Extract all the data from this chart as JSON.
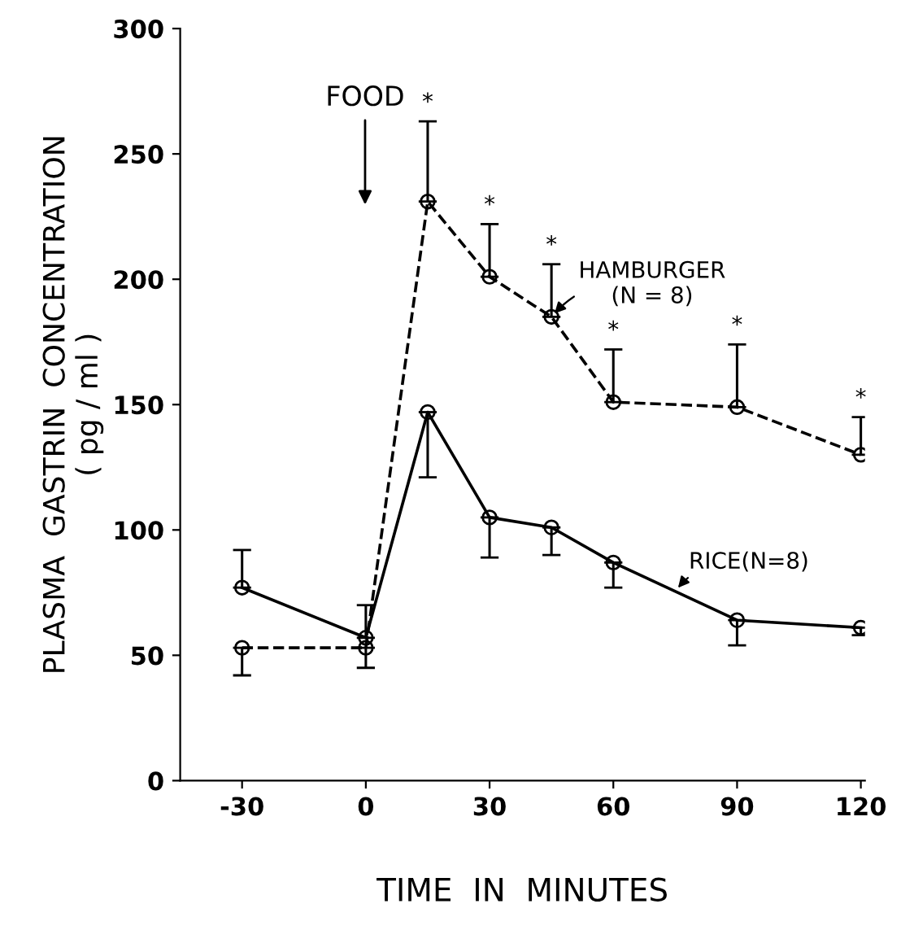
{
  "chart_data": {
    "type": "line",
    "xlabel": "TIME  IN  MINUTES",
    "ylabel": "PLASMA  GASTRIN  CONCENTRATION\n( pg / ml )",
    "x": [
      -30,
      0,
      15,
      30,
      45,
      60,
      90,
      120
    ],
    "series": [
      {
        "name": "HAMBURGER\n(N = 8)",
        "color": "#000000",
        "line_style": "dashed",
        "values": [
          53,
          53,
          231,
          201,
          185,
          151,
          149,
          130
        ],
        "errors": [
          [
            42,
            53
          ],
          [
            45,
            53
          ],
          [
            231,
            263
          ],
          [
            201,
            222
          ],
          [
            185,
            206
          ],
          [
            151,
            172
          ],
          [
            149,
            174
          ],
          [
            130,
            145
          ]
        ]
      },
      {
        "name": "RICE(N=8)",
        "color": "#000000",
        "line_style": "solid",
        "values": [
          77,
          57,
          147,
          105,
          101,
          87,
          64,
          61
        ],
        "errors": [
          [
            77,
            92
          ],
          [
            57,
            70
          ],
          [
            121,
            147
          ],
          [
            89,
            105
          ],
          [
            90,
            101
          ],
          [
            77,
            87
          ],
          [
            54,
            64
          ],
          [
            58,
            61
          ]
        ]
      }
    ],
    "marker": "circle",
    "xlim": [
      -45,
      121
    ],
    "xticks": [
      -30,
      0,
      30,
      60,
      90,
      120
    ],
    "ylim": [
      0,
      300
    ],
    "yticks": [
      0,
      50,
      100,
      150,
      200,
      250,
      300
    ],
    "grid": false,
    "legend": false,
    "annotations": [
      "FOOD",
      "*",
      "*",
      "*",
      "*",
      "*",
      "*"
    ]
  }
}
